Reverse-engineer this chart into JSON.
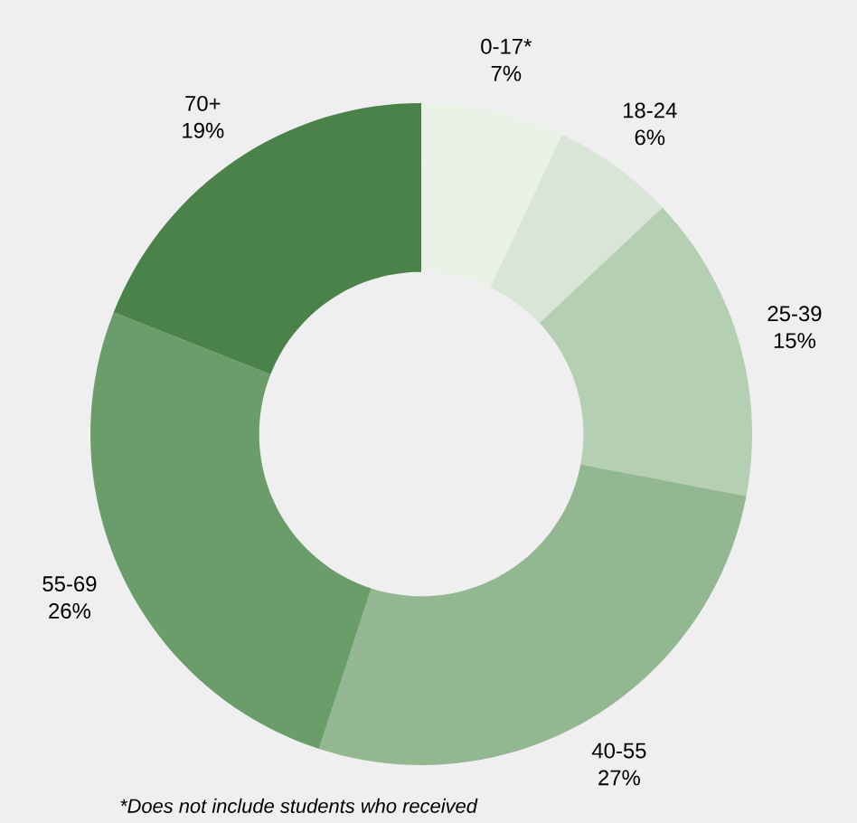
{
  "chart_data": {
    "type": "donut",
    "categories": [
      "0-17*",
      "18-24",
      "25-39",
      "40-55",
      "55-69",
      "70+"
    ],
    "values": [
      7,
      6,
      15,
      27,
      26,
      19
    ],
    "value_labels": [
      "7%",
      "6%",
      "15%",
      "27%",
      "26%",
      "19%"
    ],
    "colors": [
      "#eaf2e8",
      "#d9e6d7",
      "#b5cfb2",
      "#93b791",
      "#6b9d6b",
      "#4a824a"
    ],
    "annotations": [
      "*Does not include students who received"
    ]
  }
}
